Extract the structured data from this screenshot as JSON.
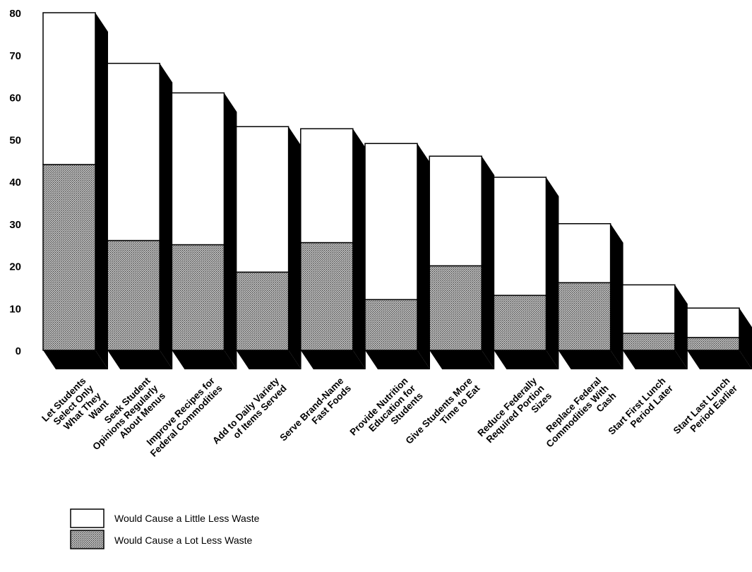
{
  "chart_data": {
    "type": "bar",
    "stacked": true,
    "style": "3d",
    "title": "",
    "xlabel": "",
    "ylabel": "",
    "ylim": [
      0,
      80
    ],
    "yticks": [
      0,
      10,
      20,
      30,
      40,
      50,
      60,
      70,
      80
    ],
    "grid": false,
    "legend_position": "bottom-left",
    "categories": [
      [
        "Let Students",
        "Select Only",
        "What They",
        "Want"
      ],
      [
        "Seek Student",
        "Opinions Regularly",
        "About Menus"
      ],
      [
        "Improve Recipes for",
        "Federal Commodities"
      ],
      [
        "Add to Daily Variety",
        "of Items Served"
      ],
      [
        "Serve Brand-Name",
        "Fast Foods"
      ],
      [
        "Provide Nutrition",
        "Education for",
        "Students"
      ],
      [
        "Give Students More",
        "Time to Eat"
      ],
      [
        "Reduce Federally",
        "Required Portion",
        "Sizes"
      ],
      [
        "Replace Federal",
        "Commodities With",
        "Cash"
      ],
      [
        "Start First Lunch",
        "Period Later"
      ],
      [
        "Start Last Lunch",
        "Period Earlier"
      ]
    ],
    "series": [
      {
        "name": "Would Cause a Lot Less Waste",
        "color": "#8a8a8a",
        "values": [
          44,
          26,
          25,
          18.5,
          25.5,
          12,
          20,
          13,
          16,
          4,
          3
        ]
      },
      {
        "name": "Would Cause a Little Less Waste",
        "color": "#ffffff",
        "values": [
          36,
          42,
          36,
          34.5,
          27,
          37,
          26,
          28,
          14,
          11.5,
          7
        ]
      }
    ]
  },
  "legend": {
    "items": [
      {
        "label": "Would Cause a Little Less Waste",
        "pattern": "white"
      },
      {
        "label": "Would Cause a Lot Less Waste",
        "pattern": "stipple"
      }
    ]
  }
}
